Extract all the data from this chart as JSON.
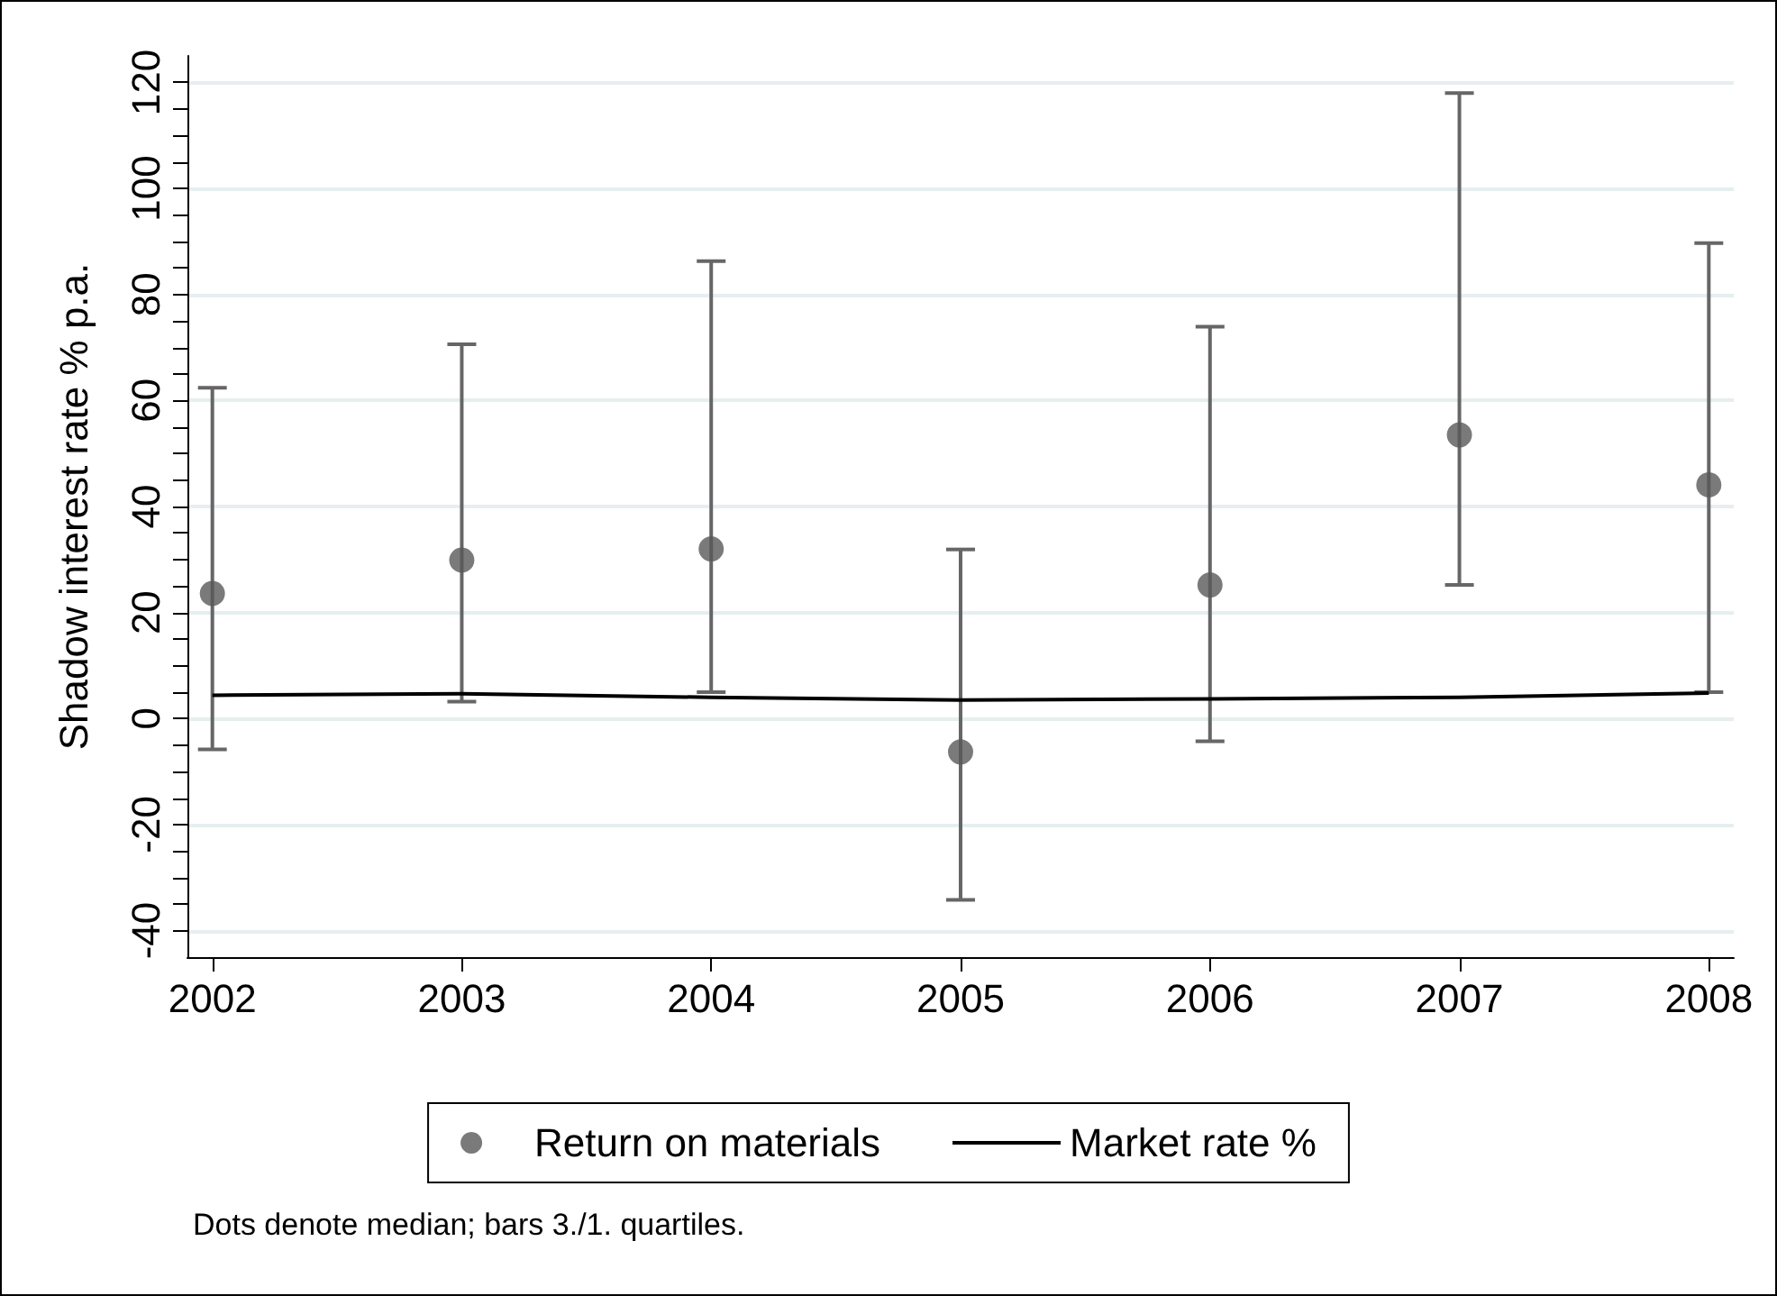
{
  "chart_data": {
    "type": "scatter",
    "ylabel": "Shadow interest rate % p.a.",
    "x": [
      2002,
      2003,
      2004,
      2005,
      2006,
      2007,
      2008
    ],
    "series": [
      {
        "name": "Return on materials",
        "color": "#595959",
        "values": [
          23.6,
          29.9,
          32.0,
          -6.3,
          25.2,
          53.5,
          44.1
        ],
        "errors": [
          [
            -5.8,
            62.4
          ],
          [
            3.2,
            70.6
          ],
          [
            5.0,
            86.3
          ],
          [
            -34.2,
            31.9
          ],
          [
            -4.3,
            73.9
          ],
          [
            25.2,
            118.0
          ],
          [
            5.0,
            89.7
          ]
        ]
      },
      {
        "name": "Market rate %",
        "type": "line",
        "color": "#000000",
        "marker": "none",
        "values": [
          4.4,
          4.7,
          4.0,
          3.5,
          3.7,
          4.0,
          4.8
        ]
      }
    ],
    "xlim": [
      2001.9,
      2008.1
    ],
    "xticks": [
      2002,
      2003,
      2004,
      2005,
      2006,
      2007,
      2008
    ],
    "ylim": [
      -45,
      125
    ],
    "yticks": [
      -40,
      {
        "value": -35,
        "label": null
      },
      {
        "value": -30,
        "label": null
      },
      {
        "value": -25,
        "label": null
      },
      -20,
      {
        "value": -15,
        "label": null
      },
      {
        "value": -10,
        "label": null
      },
      {
        "value": -5,
        "label": null
      },
      0,
      {
        "value": 5,
        "label": null
      },
      {
        "value": 10,
        "label": null
      },
      {
        "value": 15,
        "label": null
      },
      20,
      {
        "value": 25,
        "label": null
      },
      {
        "value": 30,
        "label": null
      },
      {
        "value": 35,
        "label": null
      },
      40,
      {
        "value": 45,
        "label": null
      },
      {
        "value": 50,
        "label": null
      },
      {
        "value": 55,
        "label": null
      },
      60,
      {
        "value": 65,
        "label": null
      },
      {
        "value": 70,
        "label": null
      },
      {
        "value": 75,
        "label": null
      },
      80,
      {
        "value": 85,
        "label": null
      },
      {
        "value": 90,
        "label": null
      },
      {
        "value": 95,
        "label": null
      },
      100,
      {
        "value": 105,
        "label": null
      },
      {
        "value": 110,
        "label": null
      },
      {
        "value": 115,
        "label": null
      },
      120
    ],
    "grid": "y",
    "legend": "bottom",
    "marker": "circle",
    "annotations": [
      "Dots denote median; bars 3./1. quartiles."
    ]
  }
}
